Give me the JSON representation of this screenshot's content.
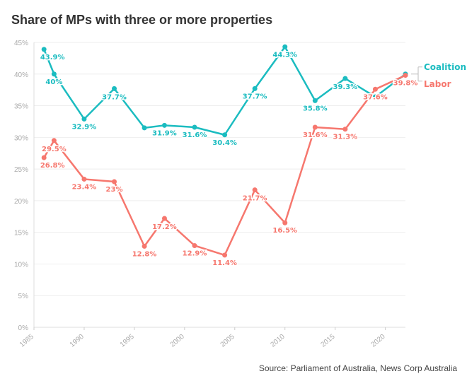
{
  "chart_data": {
    "type": "line",
    "title": "Share of MPs with three or more properties",
    "source": "Source: Parliament of Australia, News Corp Australia",
    "xlim": [
      1985,
      2022
    ],
    "ylim": [
      0,
      45
    ],
    "x_ticks": [
      "1985",
      "1990",
      "1995",
      "2000",
      "2005",
      "2010",
      "2015",
      "2020"
    ],
    "y_ticks": [
      "0%",
      "5%",
      "10%",
      "15%",
      "20%",
      "25%",
      "30%",
      "35%",
      "40%",
      "45%"
    ],
    "grid": true,
    "legend": "right",
    "x": [
      1986,
      1987,
      1990,
      1993,
      1996,
      1998,
      2001,
      2004,
      2007,
      2010,
      2013,
      2016,
      2019,
      2022
    ],
    "series": [
      {
        "name": "Coalition",
        "color": "#1bbcc0",
        "values": [
          43.9,
          40,
          32.9,
          37.7,
          31.5,
          31.9,
          31.6,
          30.4,
          37.7,
          44.3,
          35.8,
          39.3,
          36.4,
          40
        ],
        "labels": [
          "43.9%",
          "40%",
          "32.9%",
          "37.7%",
          null,
          "31.9%",
          "31.6%",
          "30.4%",
          "37.7%",
          "44.3%",
          "35.8%",
          "39.3%",
          null,
          null
        ]
      },
      {
        "name": "Labor",
        "color": "#f6776e",
        "values": [
          26.8,
          29.5,
          23.4,
          23,
          12.8,
          17.2,
          12.9,
          11.4,
          21.7,
          16.5,
          31.6,
          31.3,
          37.6,
          39.8
        ],
        "labels": [
          "26.8%",
          "29.5%",
          "23.4%",
          "23%",
          "12.8%",
          "17.2%",
          "12.9%",
          "11.4%",
          "21.7%",
          "16.5%",
          "31.6%",
          "31.3%",
          "37.6%",
          "39.8%"
        ]
      }
    ]
  }
}
